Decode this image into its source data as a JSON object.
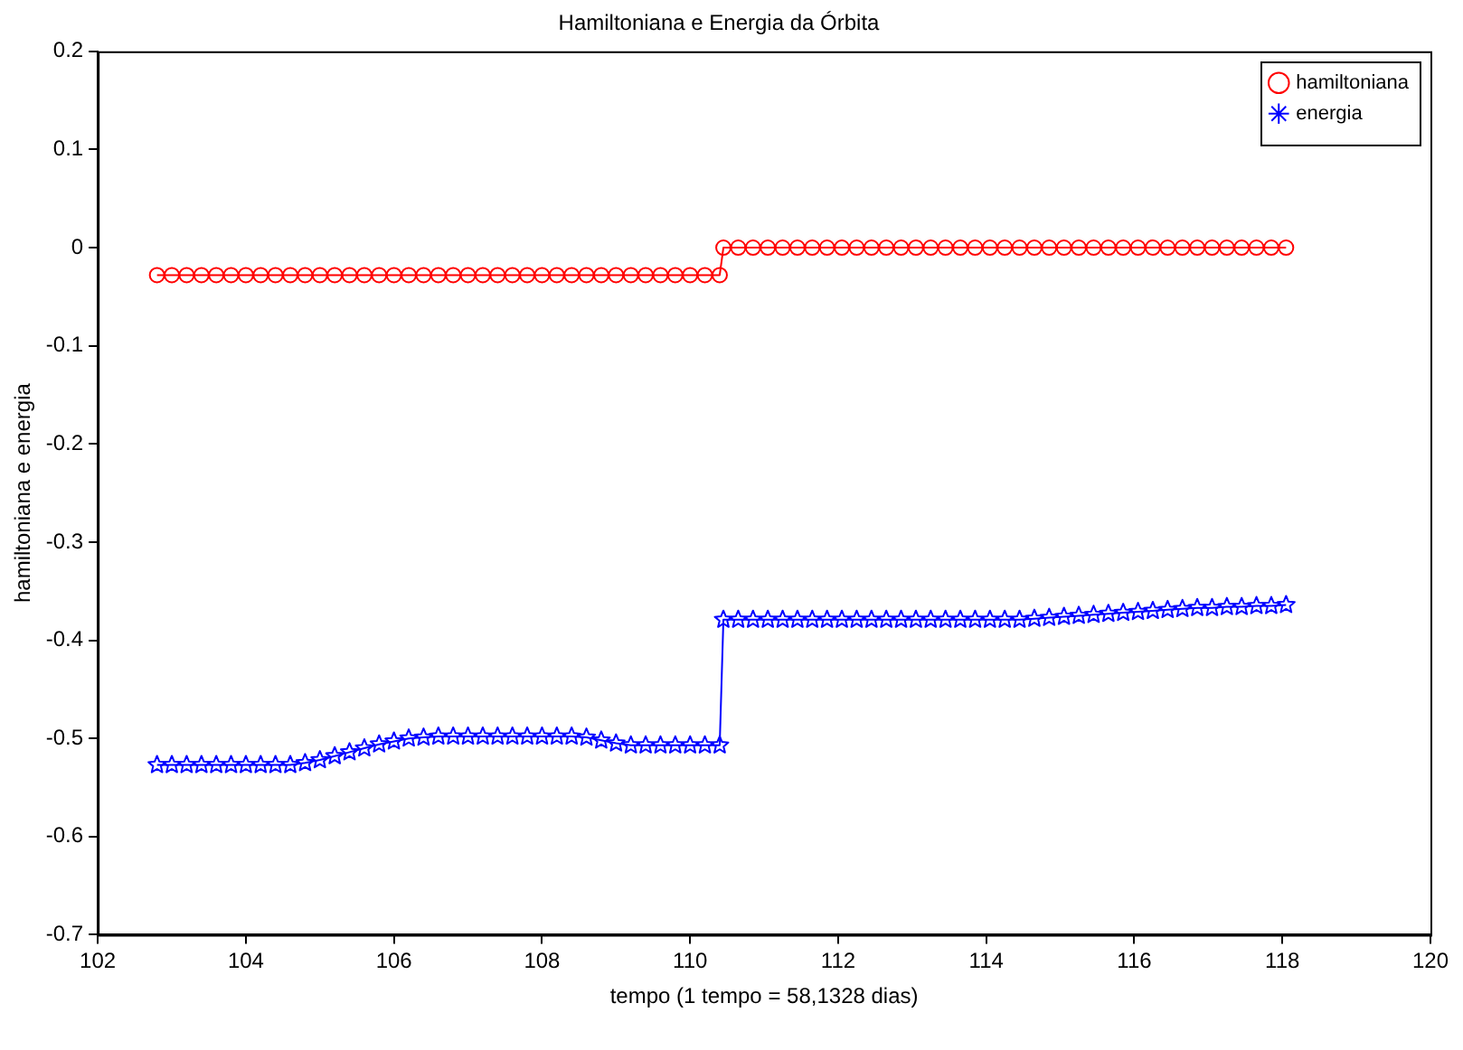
{
  "chart_data": {
    "type": "line",
    "title": "Hamiltoniana e Energia da Órbita",
    "xlabel": "tempo (1 tempo = 58,1328 dias)",
    "ylabel": "hamiltoniana e energia",
    "xlim": [
      102,
      120
    ],
    "xticks": [
      102,
      104,
      106,
      108,
      110,
      112,
      114,
      116,
      118,
      120
    ],
    "ylim": [
      -0.7,
      0.2
    ],
    "yticks": [
      -0.7,
      -0.6,
      -0.5,
      -0.4,
      -0.3,
      -0.2,
      -0.1,
      0,
      0.1,
      0.2
    ],
    "grid": false,
    "legend": "top right",
    "line_style": "solid",
    "series": [
      {
        "name": "hamiltoniana",
        "color": "#ff0000",
        "marker": "circle",
        "x": [
          102.8,
          103.0,
          103.2,
          103.4,
          103.6,
          103.8,
          104.0,
          104.2,
          104.4,
          104.6,
          104.8,
          105.0,
          105.2,
          105.4,
          105.6,
          105.8,
          106.0,
          106.2,
          106.4,
          106.6,
          106.8,
          107.0,
          107.2,
          107.4,
          107.6,
          107.8,
          108.0,
          108.2,
          108.4,
          108.6,
          108.8,
          109.0,
          109.2,
          109.4,
          109.6,
          109.8,
          110.0,
          110.2,
          110.4,
          110.45,
          110.65,
          110.85,
          111.05,
          111.25,
          111.45,
          111.65,
          111.85,
          112.05,
          112.25,
          112.45,
          112.65,
          112.85,
          113.05,
          113.25,
          113.45,
          113.65,
          113.85,
          114.05,
          114.25,
          114.45,
          114.65,
          114.85,
          115.05,
          115.25,
          115.45,
          115.65,
          115.85,
          116.05,
          116.25,
          116.45,
          116.65,
          116.85,
          117.05,
          117.25,
          117.45,
          117.65,
          117.85,
          118.05
        ],
        "values": [
          -0.028,
          -0.028,
          -0.028,
          -0.028,
          -0.028,
          -0.028,
          -0.028,
          -0.028,
          -0.028,
          -0.028,
          -0.028,
          -0.028,
          -0.028,
          -0.028,
          -0.028,
          -0.028,
          -0.028,
          -0.028,
          -0.028,
          -0.028,
          -0.028,
          -0.028,
          -0.028,
          -0.028,
          -0.028,
          -0.028,
          -0.028,
          -0.028,
          -0.028,
          -0.028,
          -0.028,
          -0.028,
          -0.028,
          -0.028,
          -0.028,
          -0.028,
          -0.028,
          -0.028,
          -0.028,
          0,
          0,
          0,
          0,
          0,
          0,
          0,
          0,
          0,
          0,
          0,
          0,
          0,
          0,
          0,
          0,
          0,
          0,
          0,
          0,
          0,
          0,
          0,
          0,
          0,
          0,
          0,
          0,
          0,
          0,
          0,
          0,
          0,
          0,
          0,
          0,
          0,
          0,
          0
        ]
      },
      {
        "name": "energia",
        "color": "#0000ff",
        "marker": "star",
        "x": [
          102.8,
          103.0,
          103.2,
          103.4,
          103.6,
          103.8,
          104.0,
          104.2,
          104.4,
          104.6,
          104.8,
          105.0,
          105.2,
          105.4,
          105.6,
          105.8,
          106.0,
          106.2,
          106.4,
          106.6,
          106.8,
          107.0,
          107.2,
          107.4,
          107.6,
          107.8,
          108.0,
          108.2,
          108.4,
          108.6,
          108.8,
          109.0,
          109.2,
          109.4,
          109.6,
          109.8,
          110.0,
          110.2,
          110.4,
          110.45,
          110.65,
          110.85,
          111.05,
          111.25,
          111.45,
          111.65,
          111.85,
          112.05,
          112.25,
          112.45,
          112.65,
          112.85,
          113.05,
          113.25,
          113.45,
          113.65,
          113.85,
          114.05,
          114.25,
          114.45,
          114.65,
          114.85,
          115.05,
          115.25,
          115.45,
          115.65,
          115.85,
          116.05,
          116.25,
          116.45,
          116.65,
          116.85,
          117.05,
          117.25,
          117.45,
          117.65,
          117.85,
          118.05
        ],
        "values": [
          -0.527,
          -0.527,
          -0.527,
          -0.527,
          -0.527,
          -0.527,
          -0.527,
          -0.527,
          -0.527,
          -0.527,
          -0.525,
          -0.522,
          -0.518,
          -0.514,
          -0.51,
          -0.506,
          -0.503,
          -0.5,
          -0.499,
          -0.498,
          -0.498,
          -0.498,
          -0.498,
          -0.498,
          -0.498,
          -0.498,
          -0.498,
          -0.498,
          -0.498,
          -0.499,
          -0.502,
          -0.505,
          -0.507,
          -0.507,
          -0.507,
          -0.507,
          -0.507,
          -0.507,
          -0.507,
          -0.379,
          -0.379,
          -0.379,
          -0.379,
          -0.379,
          -0.379,
          -0.379,
          -0.379,
          -0.379,
          -0.379,
          -0.379,
          -0.379,
          -0.379,
          -0.379,
          -0.379,
          -0.379,
          -0.379,
          -0.379,
          -0.379,
          -0.379,
          -0.379,
          -0.378,
          -0.377,
          -0.376,
          -0.375,
          -0.374,
          -0.373,
          -0.372,
          -0.371,
          -0.37,
          -0.369,
          -0.368,
          -0.367,
          -0.367,
          -0.366,
          -0.366,
          -0.365,
          -0.365,
          -0.364
        ]
      }
    ]
  }
}
